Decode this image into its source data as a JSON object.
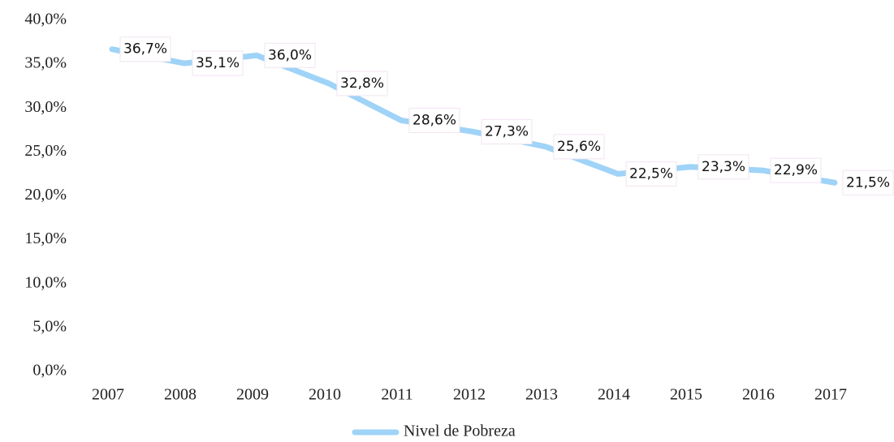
{
  "chart_data": {
    "type": "line",
    "categories": [
      "2007",
      "2008",
      "2009",
      "2010",
      "2011",
      "2012",
      "2013",
      "2014",
      "2015",
      "2016",
      "2017"
    ],
    "series": [
      {
        "name": "Nivel de Pobreza",
        "color": "#9fd3f7",
        "values": [
          36.7,
          35.1,
          36.0,
          32.8,
          28.6,
          27.3,
          25.6,
          22.5,
          23.3,
          22.9,
          21.5
        ],
        "value_labels": [
          "36,7%",
          "35,1%",
          "36,0%",
          "32,8%",
          "28,6%",
          "27,3%",
          "25,6%",
          "22,5%",
          "23,3%",
          "22,9%",
          "21,5%"
        ]
      }
    ],
    "ylim": [
      0,
      40
    ],
    "yticks": [
      {
        "value": 0,
        "label": "0,0%"
      },
      {
        "value": 5,
        "label": "5,0%"
      },
      {
        "value": 10,
        "label": "10,0%"
      },
      {
        "value": 15,
        "label": "15,0%"
      },
      {
        "value": 20,
        "label": "20,0%"
      },
      {
        "value": 25,
        "label": "25,0%"
      },
      {
        "value": 30,
        "label": "30,0%"
      },
      {
        "value": 35,
        "label": "35,0%"
      },
      {
        "value": 40,
        "label": "40,0%"
      }
    ],
    "legend": "bottom"
  }
}
